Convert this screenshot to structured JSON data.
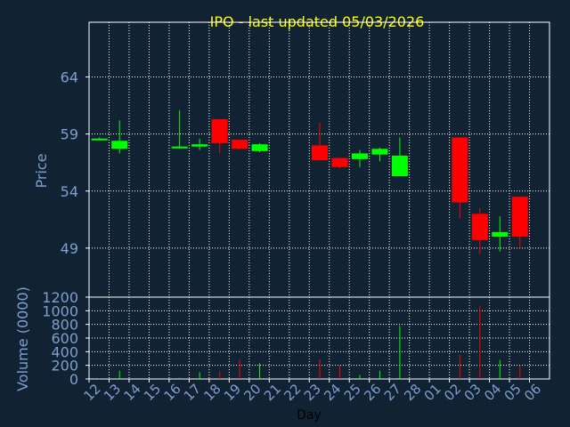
{
  "title": "IPO - last updated 05/03/2026",
  "chart_data": [
    {
      "type": "candlestick",
      "ylabel": "Price",
      "ylim": [
        44.7,
        68.8
      ],
      "yticks": [
        49,
        54,
        59,
        64
      ],
      "grid": true,
      "categories": [
        "12",
        "13",
        "14",
        "15",
        "16",
        "17",
        "18",
        "19",
        "20",
        "21",
        "22",
        "23",
        "24",
        "25",
        "26",
        "27",
        "28",
        "01",
        "02",
        "03",
        "04",
        "05",
        "06"
      ],
      "candles": [
        {
          "x": "12",
          "open": 58.6,
          "close": 58.6,
          "high": 58.7,
          "low": 58.5
        },
        {
          "x": "13",
          "open": 57.7,
          "close": 58.4,
          "high": 60.2,
          "low": 57.3
        },
        {
          "x": "16",
          "open": 57.8,
          "close": 57.9,
          "high": 61.1,
          "low": 57.7
        },
        {
          "x": "17",
          "open": 57.9,
          "close": 58.1,
          "high": 58.6,
          "low": 57.6
        },
        {
          "x": "18",
          "open": 60.3,
          "close": 58.2,
          "high": 60.3,
          "low": 57.3
        },
        {
          "x": "19",
          "open": 58.5,
          "close": 57.7,
          "high": 58.5,
          "low": 57.6
        },
        {
          "x": "20",
          "open": 57.5,
          "close": 58.1,
          "high": 58.2,
          "low": 57.4
        },
        {
          "x": "23",
          "open": 58.0,
          "close": 56.7,
          "high": 60.0,
          "low": 56.7
        },
        {
          "x": "24",
          "open": 56.9,
          "close": 56.1,
          "high": 56.9,
          "low": 56.0
        },
        {
          "x": "25",
          "open": 56.8,
          "close": 57.3,
          "high": 57.6,
          "low": 56.1
        },
        {
          "x": "26",
          "open": 57.2,
          "close": 57.7,
          "high": 57.8,
          "low": 56.6
        },
        {
          "x": "27",
          "open": 55.3,
          "close": 57.1,
          "high": 58.7,
          "low": 55.3
        },
        {
          "x": "02",
          "open": 58.7,
          "close": 53.0,
          "high": 58.7,
          "low": 51.6
        },
        {
          "x": "03",
          "open": 52.0,
          "close": 49.7,
          "high": 52.5,
          "low": 48.5
        },
        {
          "x": "04",
          "open": 50.0,
          "close": 50.4,
          "high": 51.8,
          "low": 48.7
        },
        {
          "x": "05",
          "open": 53.5,
          "close": 50.0,
          "high": 53.5,
          "low": 49.0
        }
      ]
    },
    {
      "type": "bar",
      "ylabel": "Volume (0000)",
      "xlabel": "Day",
      "ylim": [
        0,
        1200
      ],
      "yticks": [
        0,
        200,
        400,
        600,
        800,
        1000,
        1200
      ],
      "grid": true,
      "categories": [
        "12",
        "13",
        "14",
        "15",
        "16",
        "17",
        "18",
        "19",
        "20",
        "21",
        "22",
        "23",
        "24",
        "25",
        "26",
        "27",
        "28",
        "01",
        "02",
        "03",
        "04",
        "05",
        "06"
      ],
      "bars": [
        {
          "x": "12",
          "value": 5,
          "color": "#ff0000"
        },
        {
          "x": "13",
          "value": 120,
          "color": "#00ff00"
        },
        {
          "x": "16",
          "value": 20,
          "color": "#00ff00"
        },
        {
          "x": "17",
          "value": 100,
          "color": "#00ff00"
        },
        {
          "x": "18",
          "value": 110,
          "color": "#ff0000"
        },
        {
          "x": "19",
          "value": 290,
          "color": "#ff0000"
        },
        {
          "x": "20",
          "value": 230,
          "color": "#00ff00"
        },
        {
          "x": "23",
          "value": 290,
          "color": "#ff0000"
        },
        {
          "x": "24",
          "value": 200,
          "color": "#ff0000"
        },
        {
          "x": "25",
          "value": 60,
          "color": "#00ff00"
        },
        {
          "x": "26",
          "value": 120,
          "color": "#00ff00"
        },
        {
          "x": "27",
          "value": 780,
          "color": "#00ff00"
        },
        {
          "x": "02",
          "value": 350,
          "color": "#ff0000"
        },
        {
          "x": "03",
          "value": 1070,
          "color": "#ff0000"
        },
        {
          "x": "04",
          "value": 280,
          "color": "#00ff00"
        },
        {
          "x": "05",
          "value": 190,
          "color": "#ff0000"
        }
      ]
    }
  ],
  "colors": {
    "background": "#112233",
    "title": "#ffff00",
    "axis_text": "#7f9fcf",
    "frame": "#ffffff",
    "grid": "#ffffff",
    "up": "#00ff00",
    "down": "#ff0000",
    "xlabel": "#000000"
  }
}
